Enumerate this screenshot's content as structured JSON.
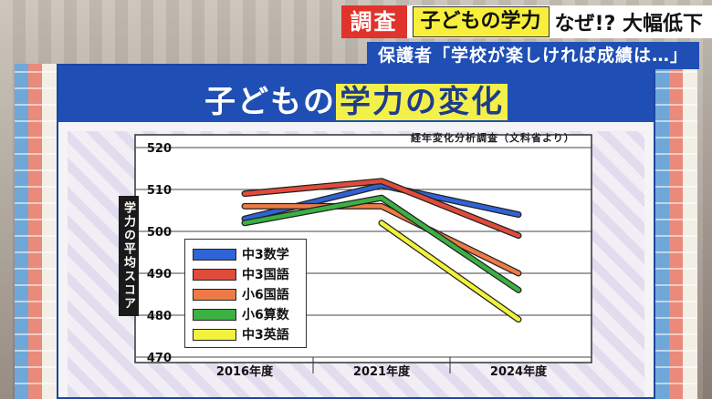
{
  "banner": {
    "tag": "調査",
    "highlight": "子どもの学力",
    "headline": "なぜ!? 大幅低下",
    "subheadline": "保護者「学校が楽しければ成績は…」"
  },
  "board": {
    "title_part1": "子どもの",
    "title_part2": "学力の変化"
  },
  "colors": {
    "board_blue": "#1f4fb5",
    "highlight_yellow": "#f3f04a",
    "tag_red": "#e0332b"
  },
  "chart_data": {
    "type": "line",
    "title": "子どもの学力の変化",
    "source_note": "経年変化分析調査（文科省より）",
    "ylabel": "学力の平均スコア",
    "xlabel": "",
    "categories": [
      "2016年度",
      "2021年度",
      "2024年度"
    ],
    "yticks": [
      470,
      480,
      490,
      500,
      510,
      520
    ],
    "ylim": [
      470,
      520
    ],
    "grid": true,
    "legend_position": "bottom-left",
    "series": [
      {
        "name": "中3数学",
        "color": "#2f63d6",
        "values": [
          503,
          511,
          504
        ]
      },
      {
        "name": "中3国語",
        "color": "#e04b3a",
        "values": [
          509,
          512,
          499
        ]
      },
      {
        "name": "小6国語",
        "color": "#ee7b46",
        "values": [
          506,
          506,
          490
        ]
      },
      {
        "name": "小6算数",
        "color": "#3cb043",
        "values": [
          502,
          508,
          486
        ]
      },
      {
        "name": "中3英語",
        "color": "#f2f23c",
        "values": [
          null,
          502,
          479
        ]
      }
    ]
  }
}
